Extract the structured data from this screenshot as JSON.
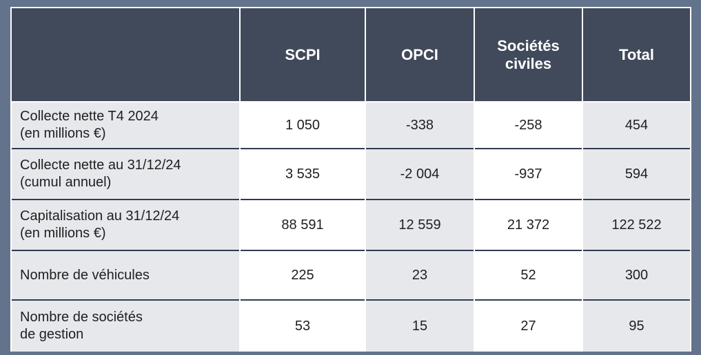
{
  "table": {
    "headers": [
      "",
      "SCPI",
      "OPCI",
      "Sociétés civiles",
      "Total"
    ],
    "header_lines": {
      "col3": [
        "Sociétés",
        "civiles"
      ]
    },
    "rows": [
      {
        "label_lines": [
          "Collecte nette T4 2024",
          "(en millions €)"
        ],
        "values": [
          "1 050",
          "-338",
          "-258",
          "454"
        ]
      },
      {
        "label_lines": [
          "Collecte nette au 31/12/24",
          "(cumul annuel)"
        ],
        "values": [
          "3 535",
          "-2 004",
          "-937",
          "594"
        ]
      },
      {
        "label_lines": [
          "Capitalisation au 31/12/24",
          "(en millions €)"
        ],
        "values": [
          "88 591",
          "12 559",
          "21 372",
          "122 522"
        ]
      },
      {
        "label_lines": [
          "Nombre de véhicules"
        ],
        "values": [
          "225",
          "23",
          "52",
          "300"
        ]
      },
      {
        "label_lines": [
          "Nombre de sociétés",
          "de gestion"
        ],
        "values": [
          "53",
          "15",
          "27",
          "95"
        ]
      }
    ]
  },
  "colors": {
    "page_background": "#64738c",
    "header_background": "#414a5a",
    "header_text": "#ffffff",
    "label_background": "#e6e8eb",
    "value_background_light": "#ffffff",
    "value_background_grey": "#e6e8eb",
    "row_divider": "#2f3a50"
  }
}
